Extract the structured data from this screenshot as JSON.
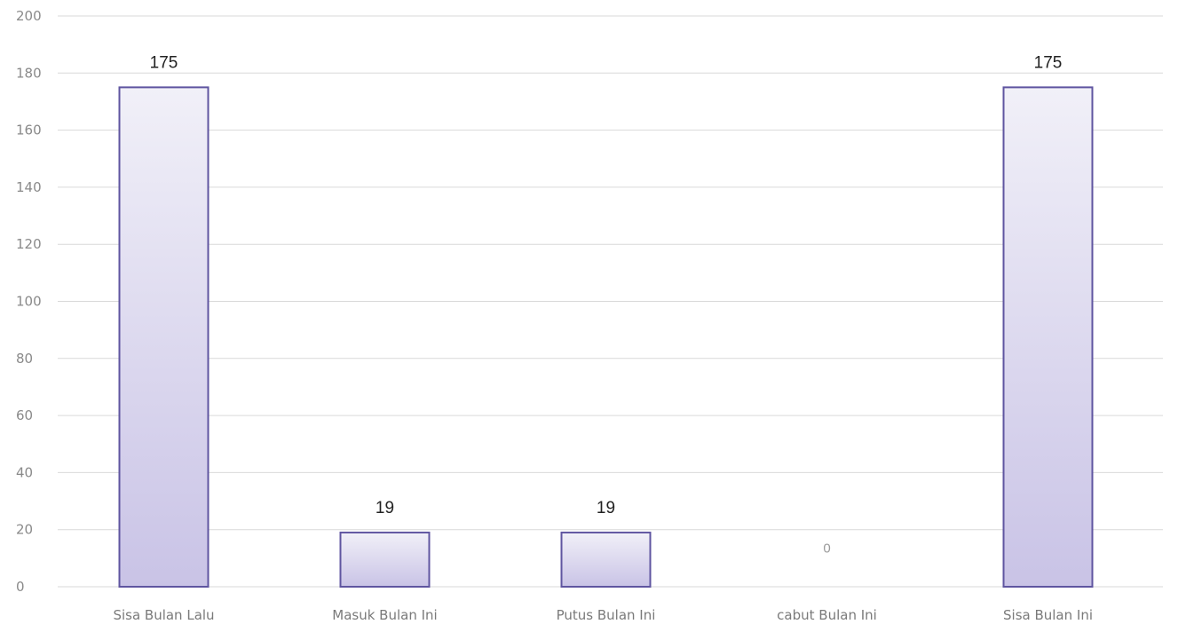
{
  "chart_data": {
    "type": "bar",
    "categories": [
      "Sisa Bulan Lalu",
      "Masuk Bulan Ini",
      "Putus Bulan Ini",
      "cabut Bulan Ini",
      "Sisa Bulan Ini"
    ],
    "values": [
      175,
      19,
      19,
      0,
      175
    ],
    "data_labels": [
      "175",
      "19",
      "19",
      "0",
      "175"
    ],
    "title": "",
    "xlabel": "",
    "ylabel": "",
    "ylim": [
      0,
      200
    ],
    "yticks": [
      0,
      20,
      40,
      60,
      80,
      100,
      120,
      140,
      160,
      180,
      200
    ],
    "grid": true,
    "legend": "none",
    "colors": {
      "bar_fill_top": "#f1f0f8",
      "bar_fill_bottom": "#c9c3e6",
      "bar_stroke": "#5f55a0",
      "grid": "#d9d9d9"
    }
  }
}
